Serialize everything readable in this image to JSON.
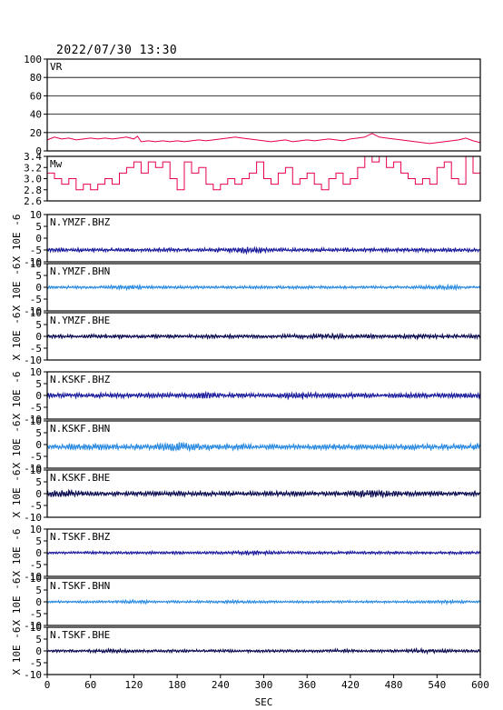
{
  "header": {
    "datetime": "2022/07/30 13:30"
  },
  "chart_data": {
    "type": "line",
    "title": "2022/07/30 13:30",
    "xlabel": "SEC",
    "xlim": [
      0,
      600
    ],
    "x_ticks": [
      0,
      60,
      120,
      180,
      240,
      300,
      360,
      420,
      480,
      540,
      600
    ],
    "panels": [
      {
        "label": "VR",
        "ylim": [
          0,
          100
        ],
        "y_ticks": [
          0,
          20,
          40,
          60,
          80,
          100
        ],
        "grid": true,
        "color": "#e8004a",
        "x": [
          0,
          10,
          20,
          30,
          40,
          50,
          60,
          70,
          80,
          90,
          100,
          110,
          120,
          125,
          130,
          140,
          150,
          160,
          170,
          180,
          190,
          200,
          210,
          220,
          230,
          240,
          250,
          260,
          270,
          280,
          290,
          300,
          310,
          320,
          330,
          340,
          350,
          360,
          370,
          380,
          390,
          400,
          410,
          420,
          430,
          440,
          450,
          460,
          470,
          480,
          490,
          500,
          510,
          520,
          530,
          540,
          550,
          560,
          570,
          580,
          590,
          600
        ],
        "values": [
          12,
          15,
          13,
          14,
          12,
          13,
          14,
          13,
          14,
          13,
          14,
          15,
          13,
          16,
          10,
          11,
          10,
          11,
          10,
          11,
          10,
          11,
          12,
          11,
          12,
          13,
          14,
          15,
          14,
          13,
          12,
          11,
          10,
          11,
          12,
          10,
          11,
          12,
          11,
          12,
          13,
          12,
          11,
          13,
          14,
          15,
          19,
          15,
          14,
          13,
          12,
          11,
          10,
          9,
          8,
          9,
          10,
          11,
          12,
          14,
          11,
          9
        ]
      },
      {
        "label": "Mw",
        "ylim": [
          2.6,
          3.4
        ],
        "y_ticks": [
          2.6,
          2.8,
          3.0,
          3.2,
          3.4
        ],
        "grid": false,
        "color": "#e8004a",
        "x": [
          0,
          10,
          20,
          30,
          40,
          50,
          60,
          70,
          80,
          90,
          100,
          110,
          120,
          130,
          140,
          150,
          160,
          170,
          180,
          190,
          200,
          210,
          220,
          230,
          240,
          250,
          260,
          270,
          280,
          290,
          300,
          310,
          320,
          330,
          340,
          350,
          360,
          370,
          380,
          390,
          400,
          410,
          420,
          430,
          440,
          450,
          460,
          470,
          480,
          490,
          500,
          510,
          520,
          530,
          540,
          550,
          560,
          570,
          580,
          590,
          600
        ],
        "values": [
          3.1,
          3.0,
          2.9,
          3.0,
          2.8,
          2.9,
          2.8,
          2.9,
          3.0,
          2.9,
          3.1,
          3.2,
          3.3,
          3.1,
          3.3,
          3.2,
          3.3,
          3.0,
          2.8,
          3.3,
          3.1,
          3.2,
          2.9,
          2.8,
          2.9,
          3.0,
          2.9,
          3.0,
          3.1,
          3.3,
          3.0,
          2.9,
          3.1,
          3.2,
          2.9,
          3.0,
          3.1,
          2.9,
          2.8,
          3.0,
          3.1,
          2.9,
          3.0,
          3.2,
          3.4,
          3.3,
          3.4,
          3.2,
          3.3,
          3.1,
          3.0,
          2.9,
          3.0,
          2.9,
          3.2,
          3.3,
          3.0,
          2.9,
          3.4,
          3.1,
          2.9
        ]
      },
      {
        "label": "N.YMZF.BHZ",
        "ylabel": "X 10E -6",
        "ylim": [
          -10,
          10
        ],
        "y_ticks": [
          -10,
          -5,
          0,
          5,
          10
        ],
        "color": "#1a1a9c",
        "baseline": -5,
        "amplitude": 0.8
      },
      {
        "label": "N.YMZF.BHN",
        "ylabel": "X 10E -6",
        "ylim": [
          -10,
          10
        ],
        "y_ticks": [
          -10,
          -5,
          0,
          5,
          10
        ],
        "color": "#2a8ae0",
        "baseline": 0,
        "amplitude": 0.6
      },
      {
        "label": "N.YMZF.BHE",
        "ylabel": "X 10E -6",
        "ylim": [
          -10,
          10
        ],
        "y_ticks": [
          -10,
          -5,
          0,
          5,
          10
        ],
        "color": "#0a0a50",
        "baseline": 0,
        "amplitude": 0.8
      },
      {
        "label": "N.KSKF.BHZ",
        "ylabel": "X 10E -6",
        "ylim": [
          -10,
          10
        ],
        "y_ticks": [
          -10,
          -5,
          0,
          5,
          10
        ],
        "color": "#1a1a9c",
        "baseline": 0,
        "amplitude": 1.0
      },
      {
        "label": "N.KSKF.BHN",
        "ylabel": "X 10E -6",
        "ylim": [
          -10,
          10
        ],
        "y_ticks": [
          -10,
          -5,
          0,
          5,
          10
        ],
        "color": "#2a8ae0",
        "baseline": -1,
        "amplitude": 1.2
      },
      {
        "label": "N.KSKF.BHE",
        "ylabel": "X 10E -6",
        "ylim": [
          -10,
          10
        ],
        "y_ticks": [
          -10,
          -5,
          0,
          5,
          10
        ],
        "color": "#0a0a50",
        "baseline": 0,
        "amplitude": 1.0
      },
      {
        "label": "N.TSKF.BHZ",
        "ylabel": "X 10E -6",
        "ylim": [
          -10,
          10
        ],
        "y_ticks": [
          -10,
          -5,
          0,
          5,
          10
        ],
        "color": "#1a1a9c",
        "baseline": 0,
        "amplitude": 0.6
      },
      {
        "label": "N.TSKF.BHN",
        "ylabel": "X 10E -6",
        "ylim": [
          -10,
          10
        ],
        "y_ticks": [
          -10,
          -5,
          0,
          5,
          10
        ],
        "color": "#2a8ae0",
        "baseline": 0,
        "amplitude": 0.5
      },
      {
        "label": "N.TSKF.BHE",
        "ylabel": "X 10E -6",
        "ylim": [
          -10,
          10
        ],
        "y_ticks": [
          -10,
          -5,
          0,
          5,
          10
        ],
        "color": "#0a0a50",
        "baseline": 0,
        "amplitude": 0.6
      }
    ]
  }
}
